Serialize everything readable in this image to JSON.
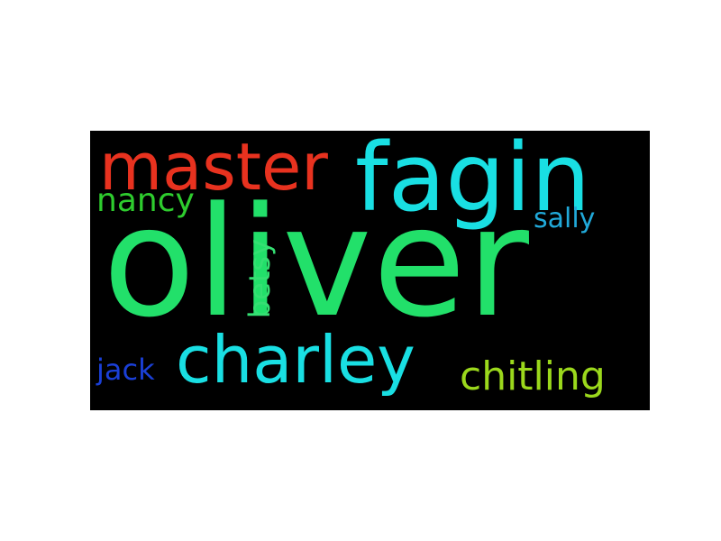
{
  "wordcloud": {
    "background": "#000000",
    "words": {
      "oliver": {
        "text": "oliver",
        "color": "#22e06a"
      },
      "fagin": {
        "text": "fagin",
        "color": "#19dfe3"
      },
      "master": {
        "text": "master",
        "color": "#e8321f"
      },
      "charley": {
        "text": "charley",
        "color": "#19dfe3"
      },
      "chitling": {
        "text": "chitling",
        "color": "#9bd81c"
      },
      "nancy": {
        "text": "nancy",
        "color": "#2ecc2e"
      },
      "betsy": {
        "text": "betsy",
        "color": "#35e073"
      },
      "sally": {
        "text": "sally",
        "color": "#21a9d9"
      },
      "jack": {
        "text": "jack",
        "color": "#1a3fd6"
      }
    }
  }
}
